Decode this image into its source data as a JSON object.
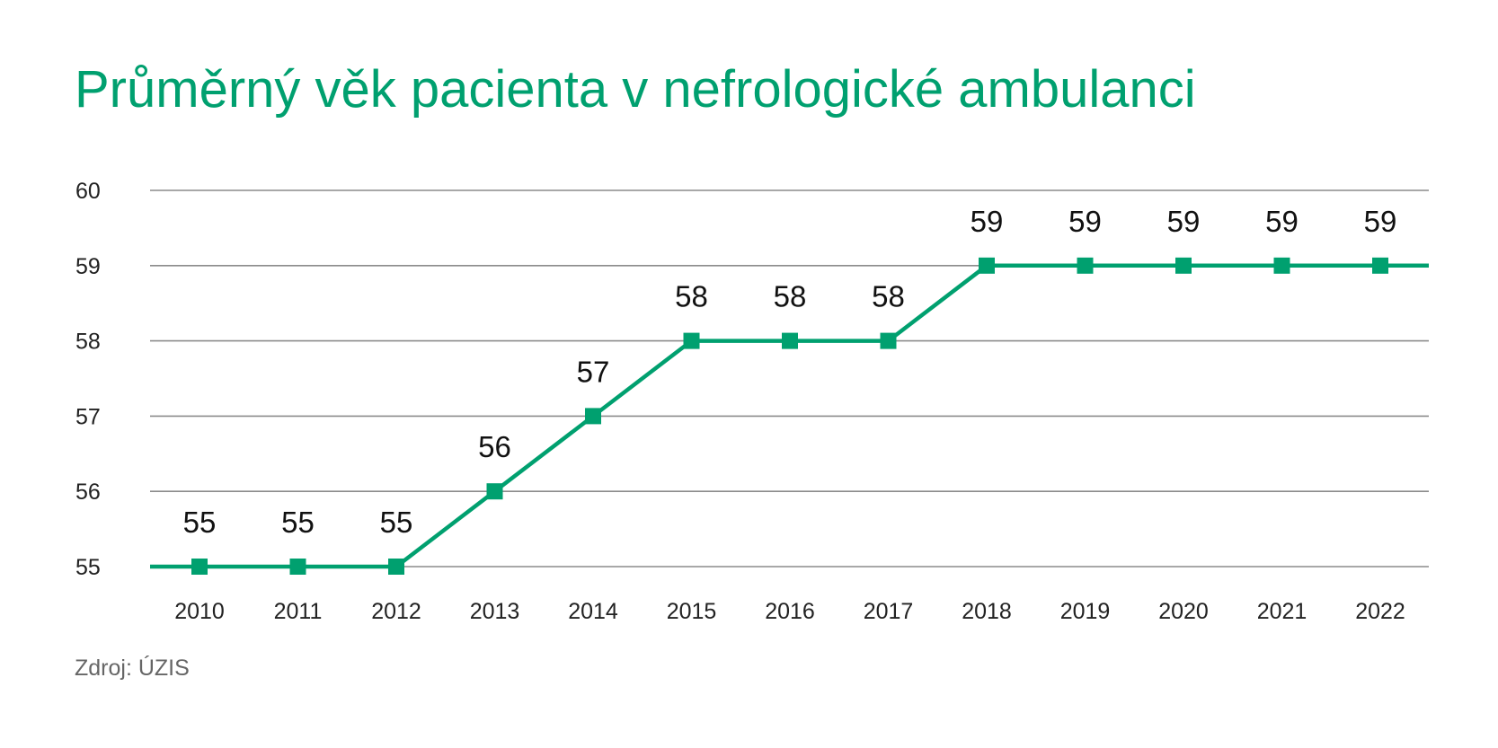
{
  "chart_data": {
    "type": "line",
    "title": "Průměrný věk pacienta v nefrologické ambulanci",
    "xlabel": "",
    "ylabel": "",
    "categories": [
      "2010",
      "2011",
      "2012",
      "2013",
      "2014",
      "2015",
      "2016",
      "2017",
      "2018",
      "2019",
      "2020",
      "2021",
      "2022"
    ],
    "series": [
      {
        "values": [
          55,
          55,
          55,
          56,
          57,
          58,
          58,
          58,
          59,
          59,
          59,
          59,
          59
        ]
      }
    ],
    "ylim": [
      55,
      60
    ],
    "yticks": [
      55,
      56,
      57,
      58,
      59,
      60
    ],
    "grid": true,
    "data_labels": true,
    "legend": "none",
    "line_color": "#00a06f",
    "grid_color": "#8c8c8c",
    "marker": "square"
  },
  "source": "Zdroj: ÚZIS"
}
